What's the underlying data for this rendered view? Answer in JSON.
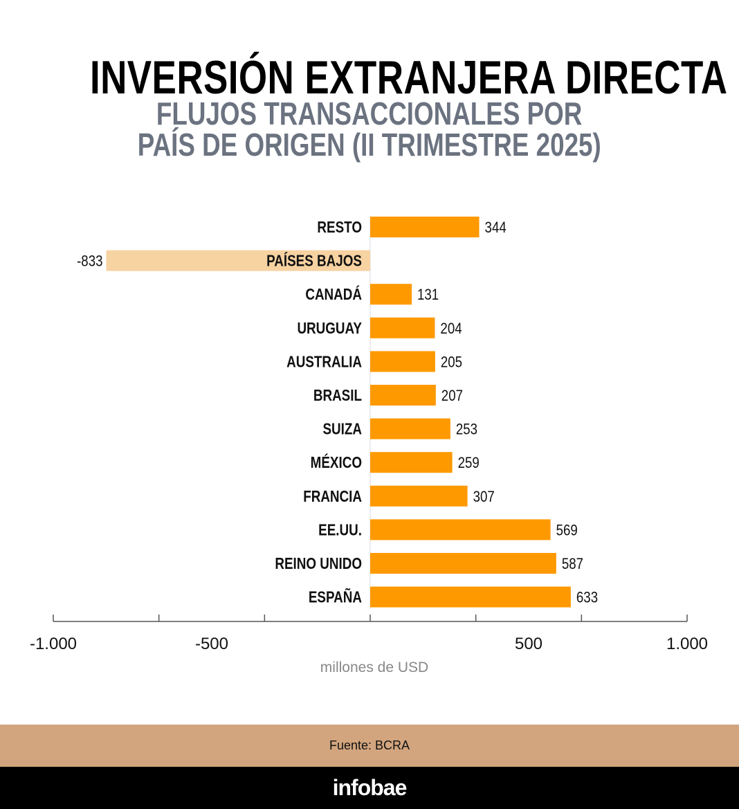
{
  "header": {
    "title": "INVERSIÓN EXTRANJERA DIRECTA",
    "subtitle_line1": "FLUJOS TRANSACCIONALES POR",
    "subtitle_line2": "PAÍS DE ORIGEN (II TRIMESTRE 2025)"
  },
  "chart_data": {
    "type": "bar",
    "orientation": "horizontal",
    "categories": [
      "RESTO",
      "PAÍSES BAJOS",
      "CANADÁ",
      "URUGUAY",
      "AUSTRALIA",
      "BRASIL",
      "SUIZA",
      "MÉXICO",
      "FRANCIA",
      "EE.UU.",
      "REINO UNIDO",
      "ESPAÑA"
    ],
    "values": [
      344,
      -833,
      131,
      204,
      205,
      207,
      253,
      259,
      307,
      569,
      587,
      633
    ],
    "value_labels": [
      "344",
      "-833",
      "131",
      "204",
      "205",
      "207",
      "253",
      "259",
      "307",
      "569",
      "587",
      "633"
    ],
    "xlim": [
      -1000,
      1000
    ],
    "xticks": [
      -1000,
      -500,
      500,
      1000
    ],
    "xtick_labels": [
      "-1.000",
      "-500",
      "500",
      "1.000"
    ],
    "xlabel": "millones de USD",
    "colors": {
      "positive": "#ff9900",
      "negative": "#f7d3a2"
    },
    "grid": false
  },
  "footer": {
    "source": "Fuente: BCRA",
    "brand": "infobae"
  }
}
